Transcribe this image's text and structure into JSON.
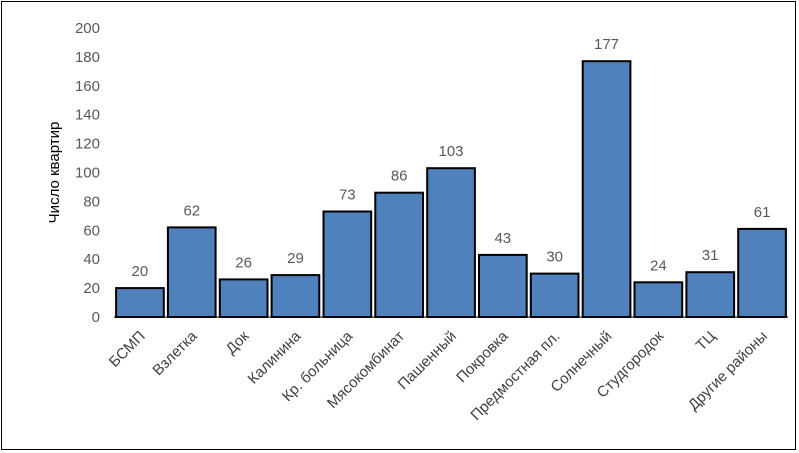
{
  "chart_data": {
    "type": "bar",
    "categories": [
      "БСМП",
      "Взлетка",
      "Док",
      "Калинина",
      "Кр. больница",
      "Мясокомбинат",
      "Пашенный",
      "Покровка",
      "Предмостная пл.",
      "Солнечный",
      "Студгородок",
      "ТЦ",
      "Другие районы"
    ],
    "values": [
      20,
      62,
      26,
      29,
      73,
      86,
      103,
      43,
      30,
      177,
      24,
      31,
      61
    ],
    "title": "",
    "xlabel": "",
    "ylabel": "Число квартир",
    "ylim": [
      0,
      200
    ],
    "yticks": [
      0,
      20,
      40,
      60,
      80,
      100,
      120,
      140,
      160,
      180,
      200
    ],
    "grid": false,
    "legend": "none",
    "data_labels": true,
    "bar_color": "#4F81BD",
    "bar_edge_color": "#000000"
  }
}
